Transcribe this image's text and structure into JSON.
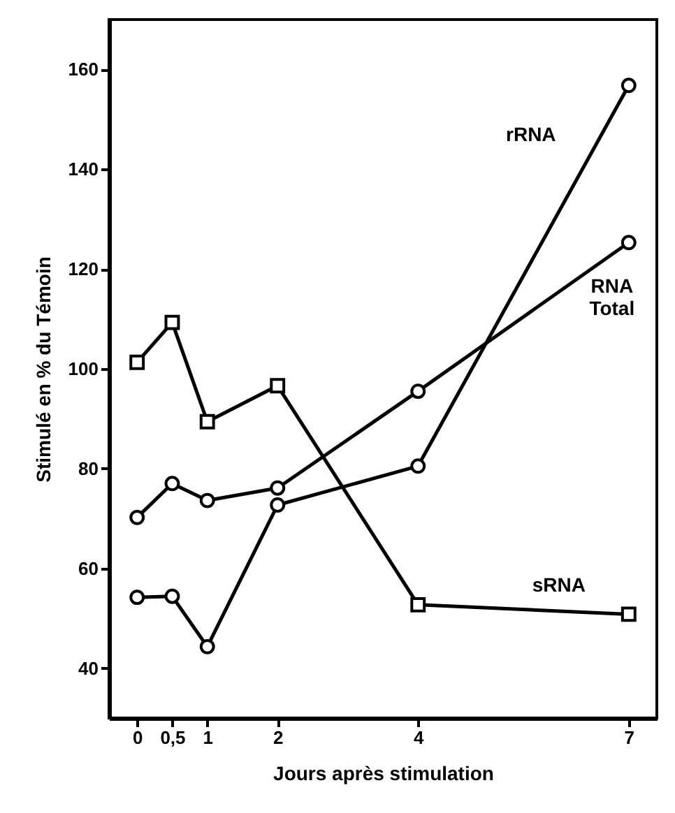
{
  "chart_data": {
    "type": "line",
    "xlabel": "Jours  après  stimulation",
    "ylabel": "Stimulé en % du Témoin",
    "xlim": [
      -0.4,
      7.4
    ],
    "ylim": [
      30,
      170
    ],
    "xticks": [
      0,
      {
        "value": 0.5,
        "label": "0,5"
      },
      1,
      2,
      4,
      7
    ],
    "yticks": [
      40,
      60,
      80,
      100,
      120,
      140,
      160
    ],
    "grid": false,
    "line_style": "solid",
    "series": [
      {
        "name": "rRNA",
        "color": "#000000",
        "marker": "circle",
        "x": [
          0,
          0.5,
          1,
          2,
          4,
          7
        ],
        "values": [
          54.2,
          54.4,
          44.3,
          72.7,
          80.5,
          156.8
        ]
      },
      {
        "name": "RNA Total",
        "color": "#000000",
        "marker": "circle",
        "x": [
          0,
          0.5,
          1,
          2,
          4,
          7
        ],
        "values": [
          70.2,
          77,
          73.6,
          76.1,
          95.5,
          125.3
        ]
      },
      {
        "name": "sRNA",
        "color": "#000000",
        "marker": "square",
        "x": [
          0,
          0.5,
          1,
          2,
          4,
          7
        ],
        "values": [
          101.3,
          109.3,
          89.4,
          96.6,
          52.7,
          50.8
        ]
      }
    ]
  }
}
